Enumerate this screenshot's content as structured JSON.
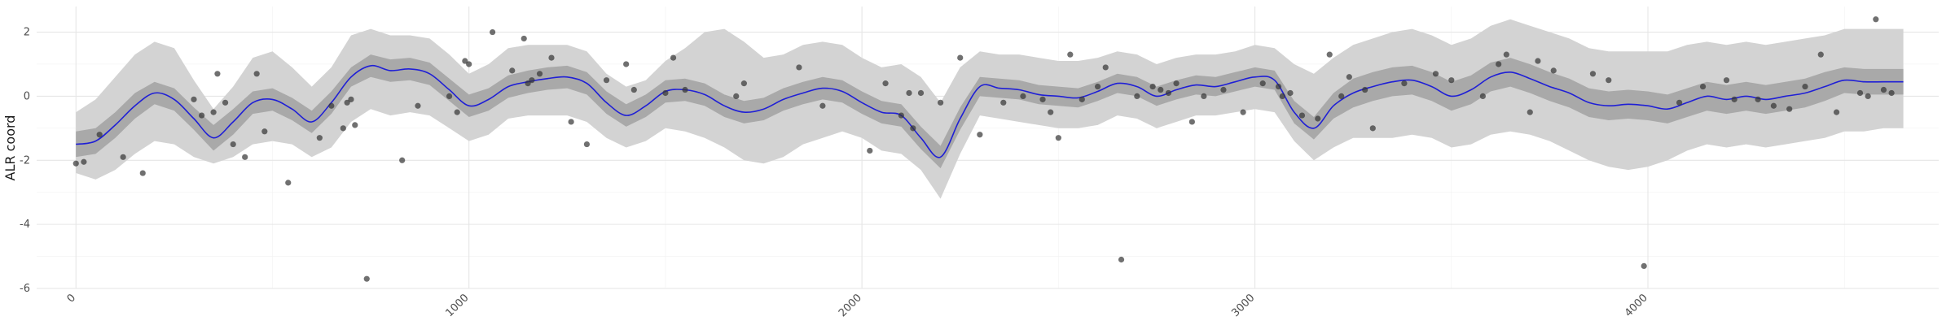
{
  "chart_data": {
    "type": "line",
    "title": "",
    "xlabel": "",
    "ylabel": "ALR coord",
    "xlim": [
      -100,
      4740
    ],
    "ylim": [
      -6,
      2.8
    ],
    "x_ticks": [
      0,
      1000,
      2000,
      3000,
      4000
    ],
    "y_ticks": [
      -6,
      -4,
      -2,
      0,
      2
    ],
    "grid": true,
    "legend": "none",
    "colors": {
      "mean_line": "#1f1fd6",
      "inner_band": "#a9a9a9",
      "outer_band": "#d3d3d3",
      "points": "#333333"
    },
    "mean_line": {
      "x": [
        0,
        50,
        100,
        150,
        200,
        250,
        300,
        350,
        400,
        450,
        500,
        550,
        600,
        650,
        700,
        750,
        800,
        850,
        900,
        950,
        1000,
        1050,
        1100,
        1150,
        1200,
        1250,
        1300,
        1350,
        1400,
        1450,
        1500,
        1550,
        1600,
        1650,
        1700,
        1750,
        1800,
        1850,
        1900,
        1950,
        2000,
        2050,
        2100,
        2150,
        2200,
        2250,
        2300,
        2350,
        2400,
        2450,
        2500,
        2550,
        2600,
        2650,
        2700,
        2750,
        2800,
        2850,
        2900,
        2950,
        3000,
        3050,
        3100,
        3150,
        3200,
        3250,
        3300,
        3350,
        3400,
        3450,
        3500,
        3550,
        3600,
        3650,
        3700,
        3750,
        3800,
        3850,
        3900,
        3950,
        4000,
        4050,
        4100,
        4150,
        4200,
        4250,
        4300,
        4350,
        4400,
        4450,
        4500,
        4550,
        4600,
        4650
      ],
      "y": [
        -1.5,
        -1.4,
        -0.9,
        -0.3,
        0.1,
        -0.1,
        -0.7,
        -1.3,
        -0.8,
        -0.2,
        -0.1,
        -0.4,
        -0.8,
        -0.2,
        0.6,
        0.95,
        0.8,
        0.85,
        0.7,
        0.2,
        -0.3,
        -0.1,
        0.3,
        0.45,
        0.55,
        0.6,
        0.4,
        -0.2,
        -0.6,
        -0.3,
        0.15,
        0.2,
        0.05,
        -0.3,
        -0.5,
        -0.4,
        -0.1,
        0.1,
        0.25,
        0.15,
        -0.2,
        -0.5,
        -0.6,
        -1.3,
        -1.9,
        -0.7,
        0.3,
        0.25,
        0.2,
        0.05,
        0.0,
        -0.05,
        0.15,
        0.4,
        0.3,
        0.0,
        0.2,
        0.35,
        0.3,
        0.45,
        0.6,
        0.5,
        -0.5,
        -1.0,
        -0.3,
        0.1,
        0.3,
        0.45,
        0.5,
        0.3,
        0.0,
        0.2,
        0.6,
        0.75,
        0.55,
        0.3,
        0.1,
        -0.2,
        -0.3,
        -0.25,
        -0.3,
        -0.4,
        -0.2,
        0.0,
        -0.1,
        0.0,
        -0.1,
        0.0,
        0.1,
        0.3,
        0.5,
        0.45,
        0.45,
        0.45
      ]
    },
    "inner_band": {
      "lower": [
        -1.9,
        -1.8,
        -1.3,
        -0.7,
        -0.25,
        -0.45,
        -1.05,
        -1.7,
        -1.2,
        -0.55,
        -0.45,
        -0.75,
        -1.15,
        -0.55,
        0.3,
        0.6,
        0.45,
        0.5,
        0.35,
        -0.15,
        -0.65,
        -0.45,
        -0.05,
        0.1,
        0.2,
        0.25,
        0.05,
        -0.55,
        -0.95,
        -0.65,
        -0.2,
        -0.15,
        -0.3,
        -0.65,
        -0.85,
        -0.75,
        -0.45,
        -0.25,
        -0.1,
        -0.2,
        -0.55,
        -0.85,
        -0.95,
        -1.65,
        -2.25,
        -1.05,
        0.0,
        -0.05,
        -0.1,
        -0.25,
        -0.3,
        -0.35,
        -0.15,
        0.1,
        0.0,
        -0.3,
        -0.1,
        0.05,
        0.0,
        0.15,
        0.3,
        0.2,
        -0.85,
        -1.35,
        -0.7,
        -0.35,
        -0.15,
        0.0,
        0.05,
        -0.15,
        -0.45,
        -0.25,
        0.15,
        0.3,
        0.1,
        -0.15,
        -0.35,
        -0.65,
        -0.75,
        -0.7,
        -0.75,
        -0.85,
        -0.65,
        -0.45,
        -0.55,
        -0.45,
        -0.55,
        -0.45,
        -0.35,
        -0.15,
        0.1,
        0.05,
        0.05,
        0.05
      ],
      "upper": [
        -1.1,
        -1.0,
        -0.5,
        0.1,
        0.45,
        0.25,
        -0.35,
        -0.9,
        -0.4,
        0.15,
        0.25,
        -0.05,
        -0.45,
        0.15,
        0.9,
        1.3,
        1.15,
        1.2,
        1.05,
        0.55,
        0.05,
        0.25,
        0.65,
        0.8,
        0.9,
        0.95,
        0.75,
        0.15,
        -0.25,
        0.05,
        0.5,
        0.55,
        0.4,
        0.05,
        -0.15,
        -0.05,
        0.25,
        0.45,
        0.6,
        0.5,
        0.15,
        -0.15,
        -0.25,
        -0.95,
        -1.55,
        -0.35,
        0.6,
        0.55,
        0.5,
        0.35,
        0.3,
        0.25,
        0.45,
        0.7,
        0.6,
        0.3,
        0.5,
        0.65,
        0.6,
        0.75,
        0.9,
        0.8,
        -0.15,
        -0.65,
        0.1,
        0.55,
        0.75,
        0.9,
        0.95,
        0.75,
        0.45,
        0.65,
        1.05,
        1.2,
        1.0,
        0.75,
        0.55,
        0.25,
        0.15,
        0.2,
        0.15,
        0.05,
        0.25,
        0.45,
        0.35,
        0.45,
        0.35,
        0.45,
        0.55,
        0.75,
        0.9,
        0.85,
        0.85,
        0.85
      ]
    },
    "outer_band": {
      "lower": [
        -2.4,
        -2.6,
        -2.3,
        -1.8,
        -1.4,
        -1.5,
        -1.9,
        -2.1,
        -1.9,
        -1.5,
        -1.4,
        -1.5,
        -1.9,
        -1.6,
        -0.8,
        -0.4,
        -0.6,
        -0.5,
        -0.6,
        -1.0,
        -1.4,
        -1.2,
        -0.7,
        -0.6,
        -0.6,
        -0.6,
        -0.8,
        -1.3,
        -1.6,
        -1.4,
        -1.0,
        -1.1,
        -1.3,
        -1.6,
        -2.0,
        -2.1,
        -1.9,
        -1.5,
        -1.3,
        -1.1,
        -1.3,
        -1.7,
        -1.8,
        -2.3,
        -3.2,
        -1.8,
        -0.6,
        -0.7,
        -0.8,
        -0.9,
        -1.0,
        -1.0,
        -0.9,
        -0.6,
        -0.7,
        -1.0,
        -0.8,
        -0.6,
        -0.6,
        -0.5,
        -0.4,
        -0.5,
        -1.4,
        -2.0,
        -1.6,
        -1.3,
        -1.3,
        -1.3,
        -1.2,
        -1.3,
        -1.6,
        -1.5,
        -1.2,
        -1.1,
        -1.2,
        -1.4,
        -1.7,
        -2.0,
        -2.2,
        -2.3,
        -2.2,
        -2.0,
        -1.7,
        -1.5,
        -1.6,
        -1.5,
        -1.6,
        -1.5,
        -1.4,
        -1.3,
        -1.1,
        -1.1,
        -1.0,
        -1.0
      ],
      "upper": [
        -0.5,
        -0.1,
        0.6,
        1.3,
        1.7,
        1.5,
        0.5,
        -0.4,
        0.3,
        1.2,
        1.4,
        0.9,
        0.3,
        0.9,
        1.9,
        2.1,
        1.9,
        1.9,
        1.8,
        1.3,
        0.7,
        1.0,
        1.5,
        1.6,
        1.6,
        1.6,
        1.4,
        0.7,
        0.3,
        0.5,
        1.1,
        1.5,
        2.0,
        2.1,
        1.7,
        1.2,
        1.3,
        1.6,
        1.7,
        1.6,
        1.2,
        0.9,
        1.0,
        0.6,
        -0.2,
        0.9,
        1.4,
        1.3,
        1.3,
        1.2,
        1.1,
        1.1,
        1.2,
        1.4,
        1.3,
        1.0,
        1.2,
        1.3,
        1.3,
        1.4,
        1.6,
        1.5,
        1.0,
        0.7,
        1.2,
        1.6,
        1.8,
        2.0,
        2.1,
        1.9,
        1.6,
        1.8,
        2.2,
        2.4,
        2.2,
        2.0,
        1.8,
        1.5,
        1.4,
        1.4,
        1.4,
        1.4,
        1.6,
        1.7,
        1.6,
        1.7,
        1.6,
        1.7,
        1.8,
        1.9,
        2.1,
        2.1,
        2.1,
        2.1
      ]
    },
    "points": {
      "x": [
        0,
        20,
        60,
        120,
        170,
        300,
        320,
        350,
        360,
        380,
        400,
        430,
        460,
        480,
        540,
        620,
        650,
        680,
        690,
        700,
        710,
        740,
        830,
        870,
        950,
        970,
        990,
        1000,
        1060,
        1110,
        1140,
        1150,
        1160,
        1180,
        1210,
        1260,
        1300,
        1350,
        1400,
        1420,
        1500,
        1520,
        1550,
        1680,
        1700,
        1840,
        1900,
        2020,
        2060,
        2100,
        2120,
        2130,
        2150,
        2200,
        2250,
        2300,
        2360,
        2410,
        2460,
        2480,
        2500,
        2530,
        2560,
        2600,
        2620,
        2660,
        2700,
        2740,
        2760,
        2780,
        2800,
        2840,
        2870,
        2920,
        2970,
        3020,
        3060,
        3070,
        3090,
        3120,
        3160,
        3190,
        3220,
        3240,
        3280,
        3300,
        3380,
        3460,
        3500,
        3580,
        3620,
        3640,
        3700,
        3720,
        3760,
        3860,
        3900,
        3990,
        4080,
        4140,
        4200,
        4220,
        4280,
        4320,
        4360,
        4400,
        4440,
        4480,
        4540,
        4560,
        4580,
        4600,
        4620
      ],
      "y": [
        -2.1,
        -2.05,
        -1.2,
        -1.9,
        -2.4,
        -0.1,
        -0.6,
        -0.5,
        0.7,
        -0.2,
        -1.5,
        -1.9,
        0.7,
        -1.1,
        -2.7,
        -1.3,
        -0.3,
        -1.0,
        -0.2,
        -0.1,
        -0.9,
        -5.7,
        -2.0,
        -0.3,
        0.0,
        -0.5,
        1.1,
        1.0,
        2.0,
        0.8,
        1.8,
        0.4,
        0.5,
        0.7,
        1.2,
        -0.8,
        -1.5,
        0.5,
        1.0,
        0.2,
        0.1,
        1.2,
        0.2,
        0.0,
        0.4,
        0.9,
        -0.3,
        -1.7,
        0.4,
        -0.6,
        0.1,
        -1.0,
        0.1,
        -0.2,
        1.2,
        -1.2,
        -0.2,
        0.0,
        -0.1,
        -0.5,
        -1.3,
        1.3,
        -0.1,
        0.3,
        0.9,
        -5.1,
        0.0,
        0.3,
        0.2,
        0.1,
        0.4,
        -0.8,
        0.0,
        0.2,
        -0.5,
        0.4,
        0.3,
        0.0,
        0.1,
        -0.6,
        -0.7,
        1.3,
        0.0,
        0.6,
        0.2,
        -1.0,
        0.4,
        0.7,
        0.5,
        0.0,
        1.0,
        1.3,
        -0.5,
        1.1,
        0.8,
        0.7,
        0.5,
        -5.3,
        -0.2,
        0.3,
        0.5,
        -0.1,
        -0.1,
        -0.3,
        -0.4,
        0.3,
        1.3,
        -0.5,
        0.1,
        0.0,
        2.4,
        0.2,
        0.1
      ]
    }
  }
}
